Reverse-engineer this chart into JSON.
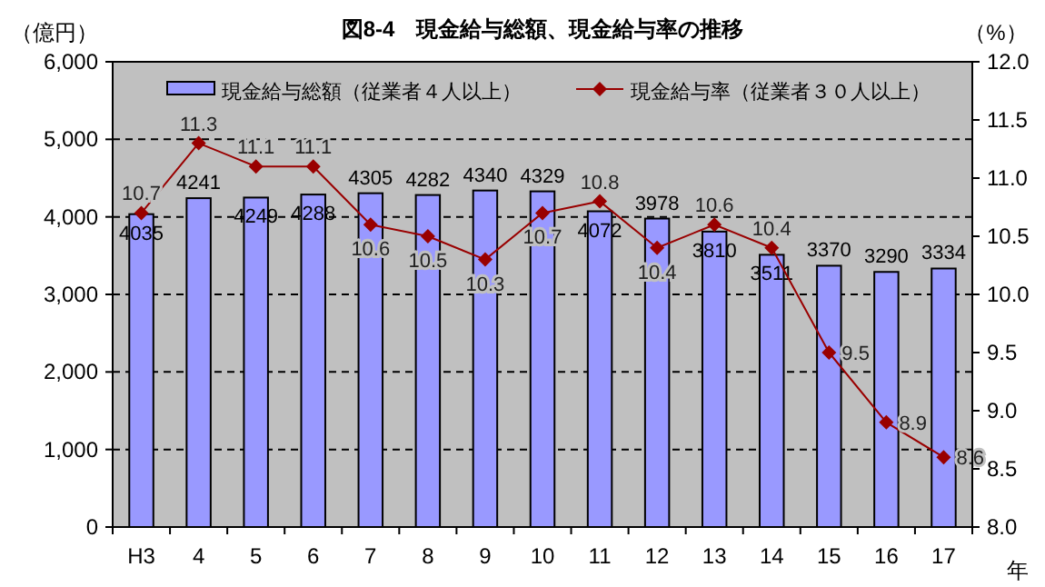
{
  "chart_data": {
    "type": "bar",
    "title": "図8-4　現金給与総額、現金給与率の推移",
    "ylabel": "（億円）",
    "y2label": "（%）",
    "xlabel": "年",
    "categories": [
      "H3",
      "4",
      "5",
      "6",
      "7",
      "8",
      "9",
      "10",
      "11",
      "12",
      "13",
      "14",
      "15",
      "16",
      "17"
    ],
    "series": [
      {
        "name": "現金給与総額（従業者４人以上）",
        "color": "#9999ff",
        "values": [
          4035,
          4241,
          4249,
          4288,
          4305,
          4282,
          4340,
          4329,
          4072,
          3978,
          3810,
          3511,
          3370,
          3290,
          3334
        ]
      },
      {
        "name": "現金給与率（従業者３０人以上）",
        "type": "line",
        "axis": "y2",
        "color": "#990000",
        "values": [
          10.7,
          11.3,
          11.1,
          11.1,
          10.6,
          10.5,
          10.3,
          10.7,
          10.8,
          10.4,
          10.6,
          10.4,
          9.5,
          8.9,
          8.6
        ]
      }
    ],
    "ylim": [
      0,
      6000
    ],
    "yticks": [
      {
        "value": 0,
        "label": "0"
      },
      {
        "value": 1000,
        "label": "1,000"
      },
      {
        "value": 2000,
        "label": "2,000"
      },
      {
        "value": 3000,
        "label": "3,000"
      },
      {
        "value": 4000,
        "label": "4,000"
      },
      {
        "value": 5000,
        "label": "5,000"
      },
      {
        "value": 6000,
        "label": "6,000"
      }
    ],
    "y2lim": [
      8,
      12
    ],
    "y2ticks": [
      {
        "value": 8,
        "label": "8.0"
      },
      {
        "value": 8.5,
        "label": "8.5"
      },
      {
        "value": 9,
        "label": "9.0"
      },
      {
        "value": 9.5,
        "label": "9.5"
      },
      {
        "value": 10,
        "label": "10.0"
      },
      {
        "value": 10.5,
        "label": "10.5"
      },
      {
        "value": 11,
        "label": "11.0"
      },
      {
        "value": 11.5,
        "label": "11.5"
      },
      {
        "value": 12,
        "label": "12.0"
      }
    ],
    "grid": "y",
    "legend": "top",
    "marker": "diamond",
    "data_labels": true
  }
}
